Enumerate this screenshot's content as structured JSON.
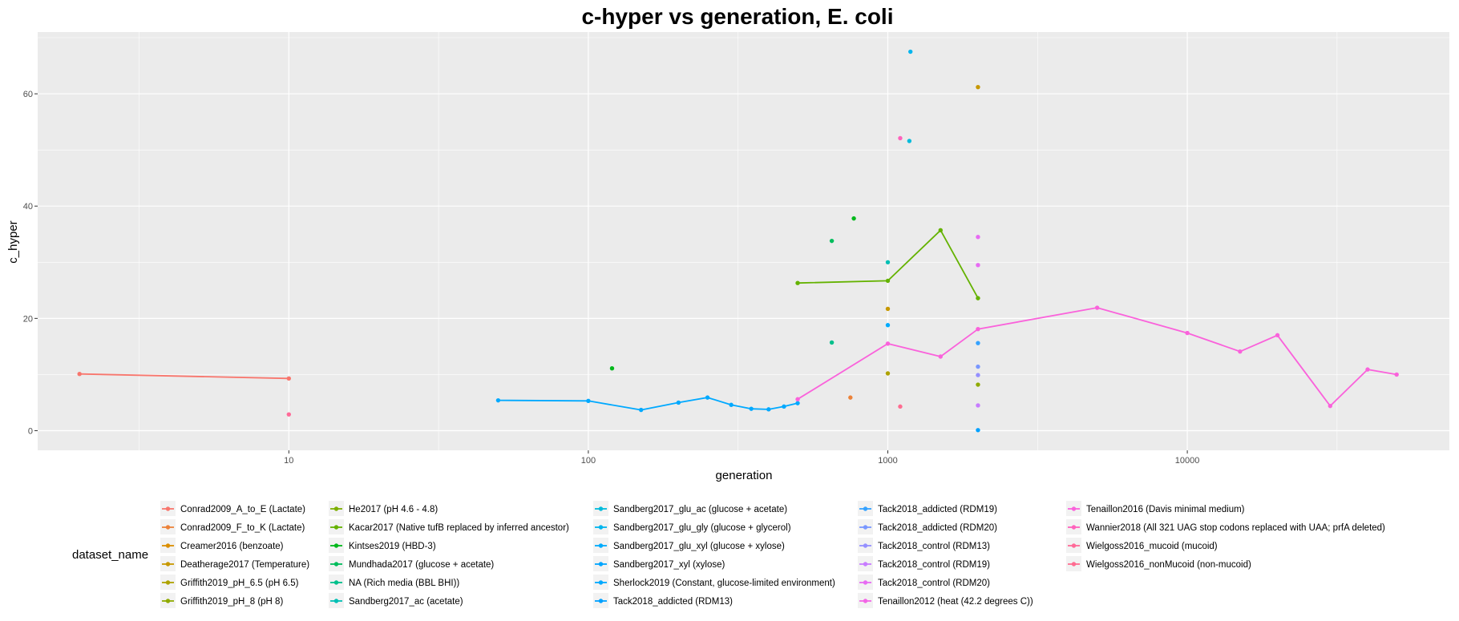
{
  "chart_data": {
    "type": "line",
    "title": "c-hyper vs generation, E. coli",
    "xlabel": "generation",
    "ylabel": "c_hyper",
    "xscale": "log10",
    "xlim": [
      1.45,
      75000
    ],
    "ylim": [
      -3.5,
      71
    ],
    "x_ticks": [
      10,
      100,
      1000,
      10000
    ],
    "x_tick_labels": [
      "10",
      "100",
      "1000",
      "10000"
    ],
    "y_ticks": [
      0,
      20,
      40,
      60
    ],
    "y_tick_labels": [
      "0",
      "20",
      "40",
      "60"
    ],
    "grid": true,
    "legend_position": "bottom",
    "legend_title": "dataset_name",
    "series": [
      {
        "name": "Conrad2009_A_to_E (Lactate)",
        "color": "#F8766D",
        "line": true,
        "points": [
          [
            2,
            10.1
          ],
          [
            10,
            9.3
          ]
        ]
      },
      {
        "name": "Conrad2009_F_to_K (Lactate)",
        "color": "#EC8239",
        "line": false,
        "points": [
          [
            750,
            5.9
          ]
        ]
      },
      {
        "name": "Creamer2016 (benzoate)",
        "color": "#DB8E00",
        "line": false,
        "points": []
      },
      {
        "name": "Deatherage2017 (Temperature)",
        "color": "#C79800",
        "line": false,
        "points": [
          [
            2000,
            61.2
          ],
          [
            1000,
            21.7
          ]
        ]
      },
      {
        "name": "Griffith2019_pH_6.5 (pH 6.5)",
        "color": "#AEA200",
        "line": false,
        "points": [
          [
            1000,
            10.2
          ]
        ]
      },
      {
        "name": "Griffith2019_pH_8 (pH 8)",
        "color": "#8FAA00",
        "line": false,
        "points": [
          [
            2000,
            8.2
          ]
        ]
      },
      {
        "name": "He2017 (pH 4.6 - 4.8)",
        "color": "#7CAE00",
        "line": false,
        "points": []
      },
      {
        "name": "Kacar2017 (Native tufB replaced by inferred ancestor)",
        "color": "#64B200",
        "line": true,
        "points": [
          [
            500,
            26.3
          ],
          [
            1000,
            26.7
          ],
          [
            1500,
            35.7
          ],
          [
            2000,
            23.6
          ]
        ]
      },
      {
        "name": "Kintses2019 (HBD-3)",
        "color": "#00B81B",
        "line": false,
        "points": [
          [
            120,
            11.1
          ],
          [
            770,
            37.8
          ]
        ]
      },
      {
        "name": "Mundhada2017 (glucose + acetate)",
        "color": "#00BD5C",
        "line": false,
        "points": [
          [
            650,
            33.8
          ]
        ]
      },
      {
        "name": "NA (Rich media (BBL BHI))",
        "color": "#00C08B",
        "line": false,
        "points": [
          [
            650,
            15.7
          ]
        ]
      },
      {
        "name": "Sandberg2017_ac (acetate)",
        "color": "#00BFB4",
        "line": false,
        "points": [
          [
            1000,
            30.0
          ]
        ]
      },
      {
        "name": "Sandberg2017_glu_ac (glucose + acetate)",
        "color": "#00BBDB",
        "line": false,
        "points": [
          [
            1180,
            51.6
          ]
        ]
      },
      {
        "name": "Sandberg2017_glu_gly (glucose + glycerol)",
        "color": "#00B5EE",
        "line": false,
        "points": [
          [
            1190,
            67.5
          ]
        ]
      },
      {
        "name": "Sandberg2017_glu_xyl (glucose + xylose)",
        "color": "#00ABFD",
        "line": false,
        "points": [
          [
            1000,
            18.8
          ]
        ]
      },
      {
        "name": "Sandberg2017_xyl (xylose)",
        "color": "#00A5FF",
        "line": false,
        "points": []
      },
      {
        "name": "Sherlock2019 (Constant, glucose-limited environment)",
        "color": "#00A9FF",
        "line": true,
        "points": [
          [
            50,
            5.4
          ],
          [
            100,
            5.3
          ],
          [
            150,
            3.7
          ],
          [
            200,
            5.0
          ],
          [
            250,
            5.9
          ],
          [
            300,
            4.6
          ],
          [
            350,
            3.9
          ],
          [
            400,
            3.8
          ],
          [
            450,
            4.3
          ],
          [
            500,
            4.9
          ]
        ]
      },
      {
        "name": "Tack2018_addicted (RDM13)",
        "color": "#00A1FF",
        "line": false,
        "points": [
          [
            2000,
            0.1
          ]
        ]
      },
      {
        "name": "Tack2018_addicted (RDM19)",
        "color": "#35A2FF",
        "line": false,
        "points": [
          [
            2000,
            15.6
          ]
        ]
      },
      {
        "name": "Tack2018_addicted (RDM20)",
        "color": "#7997FF",
        "line": false,
        "points": [
          [
            2000,
            11.4
          ]
        ]
      },
      {
        "name": "Tack2018_control (RDM13)",
        "color": "#9590FF",
        "line": false,
        "points": [
          [
            2000,
            9.9
          ]
        ]
      },
      {
        "name": "Tack2018_control (RDM19)",
        "color": "#C77CFF",
        "line": false,
        "points": [
          [
            2000,
            4.5
          ]
        ]
      },
      {
        "name": "Tack2018_control (RDM20)",
        "color": "#E76BF3",
        "line": false,
        "points": [
          [
            2000,
            34.5
          ],
          [
            2000,
            29.5
          ]
        ]
      },
      {
        "name": "Tenaillon2012 (heat (42.2 degrees C))",
        "color": "#F365E6",
        "line": false,
        "points": []
      },
      {
        "name": "Tenaillon2016 (Davis minimal medium)",
        "color": "#FA62DB",
        "line": true,
        "points": [
          [
            500,
            5.6
          ],
          [
            1000,
            15.5
          ],
          [
            1500,
            13.2
          ],
          [
            2000,
            18.1
          ],
          [
            5000,
            21.9
          ],
          [
            10000,
            17.4
          ],
          [
            15000,
            14.1
          ],
          [
            20000,
            17.0
          ],
          [
            30000,
            4.4
          ],
          [
            40000,
            10.9
          ],
          [
            50000,
            10.0
          ]
        ]
      },
      {
        "name": "Wannier2018 (All 321 UAG stop codons replaced with UAA; prfA deleted)",
        "color": "#FF62BC",
        "line": false,
        "points": [
          [
            1100,
            52.1
          ]
        ]
      },
      {
        "name": "Wielgoss2016_mucoid (mucoid)",
        "color": "#FF6A98",
        "line": false,
        "points": [
          [
            10,
            2.9
          ]
        ]
      },
      {
        "name": "Wielgoss2016_nonMucoid (non-mucoid)",
        "color": "#FF6C91",
        "line": false,
        "points": [
          [
            1100,
            4.3
          ]
        ]
      }
    ]
  }
}
